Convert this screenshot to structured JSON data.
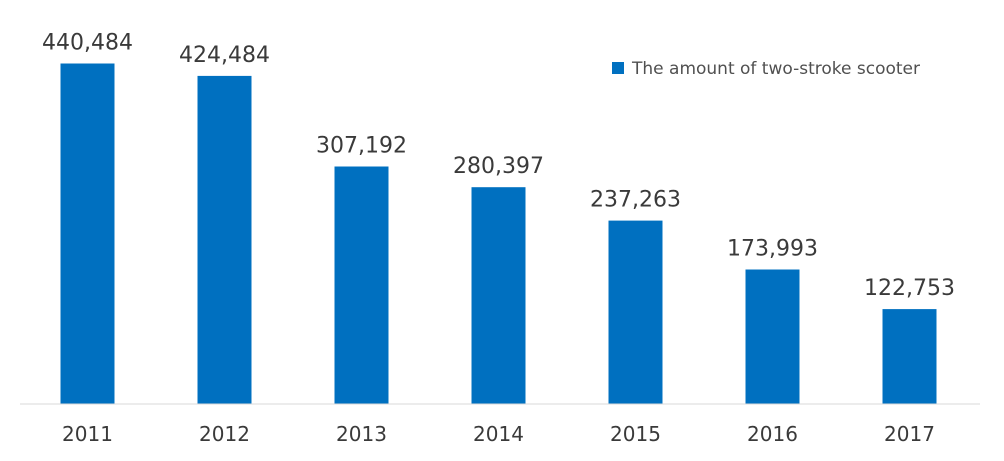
{
  "chart_data": {
    "type": "bar",
    "categories": [
      "2011",
      "2012",
      "2013",
      "2014",
      "2015",
      "2016",
      "2017"
    ],
    "series": [
      {
        "name": "The amount of two-stroke scooter",
        "values": [
          440484,
          424484,
          307192,
          280397,
          237263,
          173993,
          122753
        ]
      }
    ],
    "data_labels": [
      "440,484",
      "424,484",
      "307,192",
      "280,397",
      "237,263",
      "173,993",
      "122,753"
    ],
    "ylim": [
      0,
      445000
    ],
    "grid": false,
    "legend": "top-right",
    "colors": {
      "bar": "#0070C0",
      "axis": "#d9d9d9"
    }
  }
}
